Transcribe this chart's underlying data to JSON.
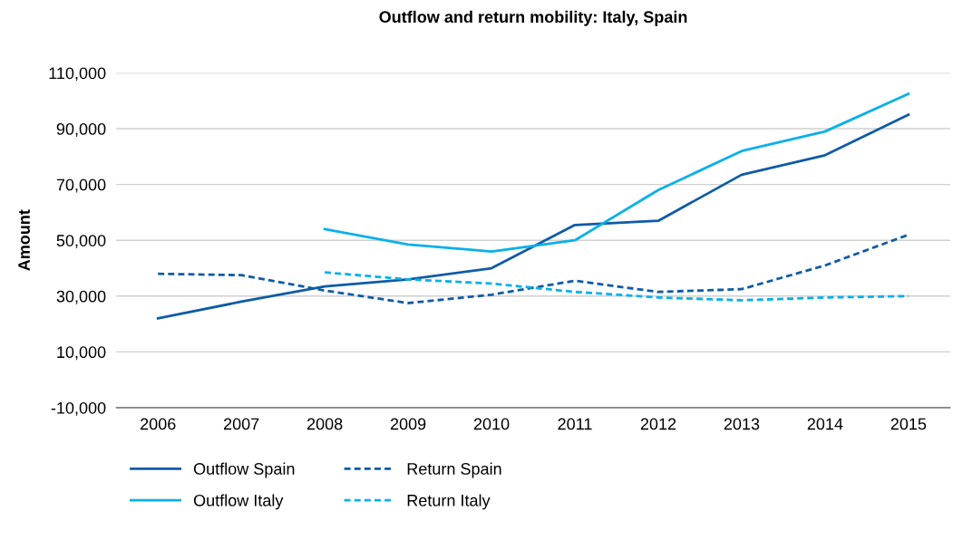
{
  "chart_data": {
    "type": "line",
    "title": "Outflow and return mobility: Italy, Spain",
    "ylabel": "Amount",
    "categories": [
      "2006",
      "2007",
      "2008",
      "2009",
      "2010",
      "2011",
      "2012",
      "2013",
      "2014",
      "2015"
    ],
    "series": [
      {
        "name": "Outflow Spain",
        "color": "#0f5ba6",
        "line_style": "solid",
        "values": [
          22000,
          28000,
          33500,
          36000,
          40000,
          55500,
          57000,
          73500,
          80500,
          95000
        ]
      },
      {
        "name": "Outflow Italy",
        "color": "#0ab0ea",
        "line_style": "solid",
        "values": [
          null,
          null,
          54000,
          48500,
          46000,
          50000,
          68000,
          82000,
          89000,
          102500
        ]
      },
      {
        "name": "Return Spain",
        "color": "#0f5ba6",
        "line_style": "dashed",
        "values": [
          38000,
          37500,
          32000,
          27500,
          30500,
          35500,
          31500,
          32500,
          41000,
          52000
        ]
      },
      {
        "name": "Return Italy",
        "color": "#0ab0ea",
        "line_style": "dashed",
        "values": [
          null,
          null,
          38500,
          36000,
          34500,
          31500,
          29500,
          28500,
          29500,
          30000
        ]
      }
    ],
    "ylim": [
      -10000,
      110000
    ],
    "yticks": [
      {
        "value": -10000,
        "label": "-10,000"
      },
      {
        "value": 10000,
        "label": "10,000"
      },
      {
        "value": 30000,
        "label": "30,000"
      },
      {
        "value": 50000,
        "label": "50,000"
      },
      {
        "value": 70000,
        "label": "70,000"
      },
      {
        "value": 90000,
        "label": "90,000"
      },
      {
        "value": 110000,
        "label": "110,000"
      }
    ],
    "grid": "y",
    "legend": "bottom",
    "marker": "none"
  }
}
